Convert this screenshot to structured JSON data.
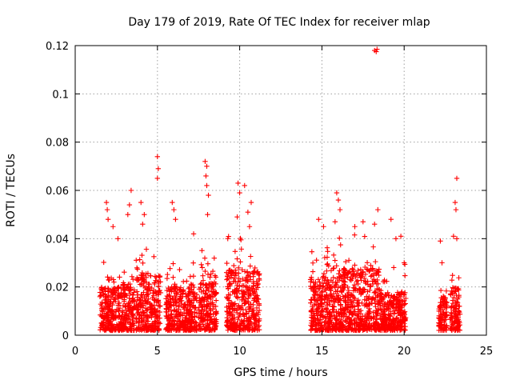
{
  "chart_data": {
    "type": "scatter",
    "title": "Day 179 of 2019, Rate Of TEC Index for receiver mlap",
    "xlabel": "GPS time / hours",
    "ylabel": "ROTI / TECUs",
    "xlim": [
      0,
      25
    ],
    "ylim": [
      0,
      0.12
    ],
    "xticks": [
      0,
      5,
      10,
      15,
      20,
      25
    ],
    "xtick_labels": [
      "0",
      "5",
      "10",
      "15",
      "20",
      "25"
    ],
    "yticks": [
      0,
      0.02,
      0.04,
      0.06,
      0.08,
      0.1,
      0.12
    ],
    "ytick_labels": [
      "0",
      "0.02",
      "0.04",
      "0.06",
      "0.08",
      "0.1",
      "0.12"
    ],
    "grid": true,
    "legend": "none",
    "marker": "+",
    "series_color": "#ff0000",
    "clusters": [
      {
        "x_range": [
          1.5,
          2.9
        ],
        "typical_max": 0.02,
        "floor": 0.002
      },
      {
        "x_range": [
          2.9,
          3.6
        ],
        "typical_max": 0.022,
        "floor": 0.002
      },
      {
        "x_range": [
          3.7,
          5.2
        ],
        "typical_max": 0.026,
        "floor": 0.002
      },
      {
        "x_range": [
          5.5,
          7.4
        ],
        "typical_max": 0.02,
        "floor": 0.002
      },
      {
        "x_range": [
          7.5,
          8.6
        ],
        "typical_max": 0.022,
        "floor": 0.002
      },
      {
        "x_range": [
          9.2,
          11.2
        ],
        "typical_max": 0.028,
        "floor": 0.002
      },
      {
        "x_range": [
          14.3,
          16.0
        ],
        "typical_max": 0.024,
        "floor": 0.002
      },
      {
        "x_range": [
          16.0,
          18.5
        ],
        "typical_max": 0.028,
        "floor": 0.002
      },
      {
        "x_range": [
          18.5,
          20.1
        ],
        "typical_max": 0.018,
        "floor": 0.002
      },
      {
        "x_range": [
          22.1,
          22.6
        ],
        "typical_max": 0.016,
        "floor": 0.002
      },
      {
        "x_range": [
          22.8,
          23.4
        ],
        "typical_max": 0.02,
        "floor": 0.002
      }
    ],
    "notable_points": [
      {
        "x": 1.9,
        "y": 0.055
      },
      {
        "x": 1.95,
        "y": 0.052
      },
      {
        "x": 2.0,
        "y": 0.048
      },
      {
        "x": 2.3,
        "y": 0.045
      },
      {
        "x": 2.6,
        "y": 0.04
      },
      {
        "x": 3.4,
        "y": 0.06
      },
      {
        "x": 3.3,
        "y": 0.054
      },
      {
        "x": 3.2,
        "y": 0.05
      },
      {
        "x": 4.0,
        "y": 0.055
      },
      {
        "x": 4.2,
        "y": 0.05
      },
      {
        "x": 4.1,
        "y": 0.046
      },
      {
        "x": 5.0,
        "y": 0.074
      },
      {
        "x": 5.05,
        "y": 0.069
      },
      {
        "x": 5.0,
        "y": 0.065
      },
      {
        "x": 5.9,
        "y": 0.055
      },
      {
        "x": 6.0,
        "y": 0.052
      },
      {
        "x": 6.1,
        "y": 0.048
      },
      {
        "x": 7.2,
        "y": 0.042
      },
      {
        "x": 7.9,
        "y": 0.072
      },
      {
        "x": 8.0,
        "y": 0.07
      },
      {
        "x": 7.95,
        "y": 0.066
      },
      {
        "x": 8.0,
        "y": 0.062
      },
      {
        "x": 8.1,
        "y": 0.058
      },
      {
        "x": 8.05,
        "y": 0.05
      },
      {
        "x": 9.9,
        "y": 0.063
      },
      {
        "x": 10.0,
        "y": 0.059
      },
      {
        "x": 9.85,
        "y": 0.049
      },
      {
        "x": 10.3,
        "y": 0.062
      },
      {
        "x": 10.5,
        "y": 0.051
      },
      {
        "x": 10.7,
        "y": 0.055
      },
      {
        "x": 10.6,
        "y": 0.045
      },
      {
        "x": 14.8,
        "y": 0.048
      },
      {
        "x": 15.1,
        "y": 0.045
      },
      {
        "x": 15.9,
        "y": 0.059
      },
      {
        "x": 16.0,
        "y": 0.056
      },
      {
        "x": 16.1,
        "y": 0.052
      },
      {
        "x": 15.8,
        "y": 0.047
      },
      {
        "x": 17.0,
        "y": 0.045
      },
      {
        "x": 17.5,
        "y": 0.047
      },
      {
        "x": 18.2,
        "y": 0.118
      },
      {
        "x": 18.3,
        "y": 0.1175
      },
      {
        "x": 18.35,
        "y": 0.1185
      },
      {
        "x": 18.4,
        "y": 0.052
      },
      {
        "x": 18.2,
        "y": 0.046
      },
      {
        "x": 19.2,
        "y": 0.048
      },
      {
        "x": 19.5,
        "y": 0.04
      },
      {
        "x": 19.8,
        "y": 0.041
      },
      {
        "x": 20.0,
        "y": 0.03
      },
      {
        "x": 22.2,
        "y": 0.039
      },
      {
        "x": 22.3,
        "y": 0.03
      },
      {
        "x": 23.2,
        "y": 0.065
      },
      {
        "x": 23.1,
        "y": 0.055
      },
      {
        "x": 23.15,
        "y": 0.052
      },
      {
        "x": 23.0,
        "y": 0.041
      },
      {
        "x": 23.2,
        "y": 0.04
      }
    ]
  }
}
